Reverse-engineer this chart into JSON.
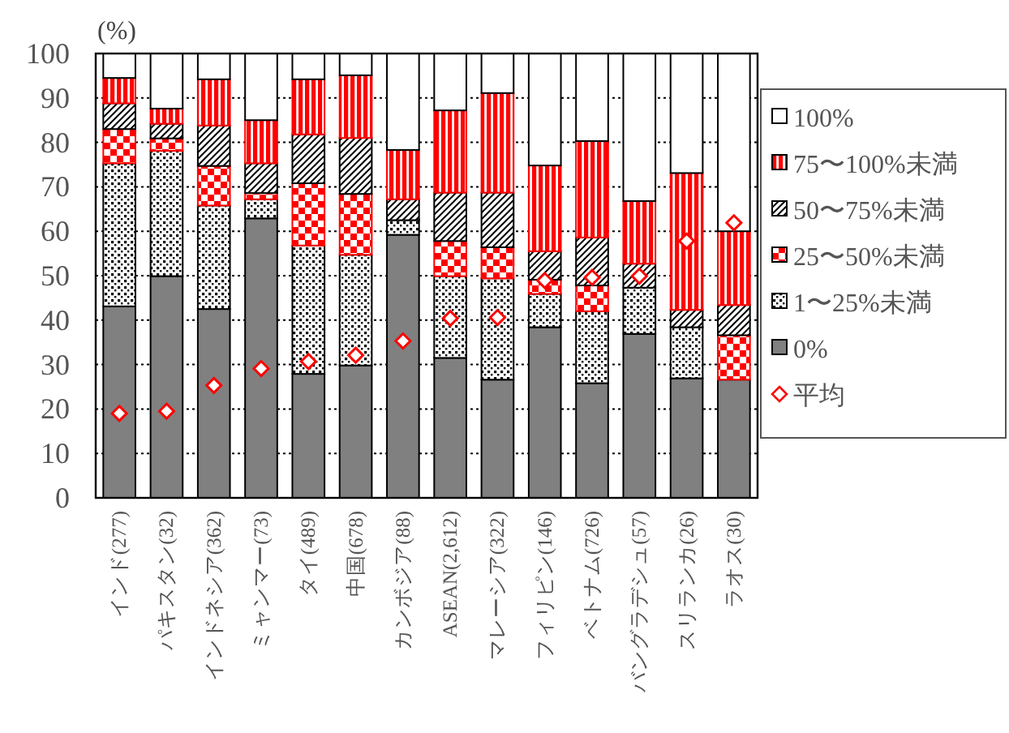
{
  "chart_data": {
    "type": "bar",
    "stacked": true,
    "ylabel": "(%)",
    "categories": [
      "インド(277)",
      "パキスタン(32)",
      "インドネシア(362)",
      "ミャンマー(73)",
      "タイ(489)",
      "中国(678)",
      "カンボジア(88)",
      "ASEAN(2,612)",
      "マレーシア(322)",
      "フィリピン(146)",
      "ベトナム(726)",
      "バングラデシュ(57)",
      "スリランカ(26)",
      "ラオス(30)"
    ],
    "series": [
      {
        "name": "0%",
        "color": "#808080",
        "values": [
          43.1,
          49.9,
          42.5,
          62.9,
          27.9,
          29.8,
          59.2,
          31.5,
          26.6,
          38.4,
          25.8,
          36.9,
          26.9,
          26.6
        ]
      },
      {
        "name": "1〜25%未満",
        "color": "#000000",
        "values": [
          32.2,
          28.2,
          23.3,
          4.3,
          28.9,
          24.9,
          3.3,
          18.4,
          22.8,
          7.5,
          16.2,
          10.4,
          11.5,
          0
        ]
      },
      {
        "name": "25〜50%未満",
        "color": "#ff0000",
        "values": [
          7.7,
          2.8,
          8.9,
          1.4,
          14.0,
          13.7,
          0,
          7.9,
          7.0,
          3.2,
          5.8,
          0,
          0,
          10.0
        ]
      },
      {
        "name": "50〜75%未満",
        "color": "#000000",
        "values": [
          5.8,
          3.3,
          9.1,
          6.7,
          11.0,
          12.6,
          4.7,
          10.9,
          12.3,
          6.4,
          10.8,
          5.4,
          3.9,
          6.8
        ]
      },
      {
        "name": "75〜100%未満",
        "color": "#ff0000",
        "values": [
          5.7,
          3.4,
          10.4,
          9.7,
          12.4,
          14.1,
          11.1,
          18.5,
          22.4,
          19.3,
          21.7,
          14.1,
          30.8,
          16.6
        ]
      },
      {
        "name": "100%",
        "color": "#ffffff",
        "values": [
          5.5,
          12.4,
          5.8,
          15.0,
          5.8,
          4.9,
          21.7,
          12.8,
          8.9,
          25.2,
          19.7,
          33.2,
          26.9,
          40.0
        ]
      },
      {
        "name": "平均",
        "type": "scatter",
        "color": "#ff0000",
        "marker": "diamond",
        "x": [
          "インド(277)",
          "パキスタン(32)",
          "インドネシア(362)",
          "ミャンマー(73)",
          "タイ(489)",
          "中国(678)",
          "カンボジア(88)",
          "ASEAN(2,612)",
          "マレーシア(322)",
          "フィリピン(146)",
          "ベトナム(726)",
          "バングラデシュ(57)",
          "スリランカ(26)",
          "ラオス(30)"
        ],
        "values": [
          19.0,
          19.5,
          25.3,
          29.1,
          30.7,
          32.1,
          35.3,
          40.4,
          40.6,
          48.9,
          49.6,
          49.9,
          57.8,
          61.9
        ]
      }
    ],
    "ylim": [
      0,
      100
    ],
    "yticks": [
      0,
      10,
      20,
      30,
      40,
      50,
      60,
      70,
      80,
      90,
      100
    ],
    "grid": "y",
    "legend": "right"
  }
}
